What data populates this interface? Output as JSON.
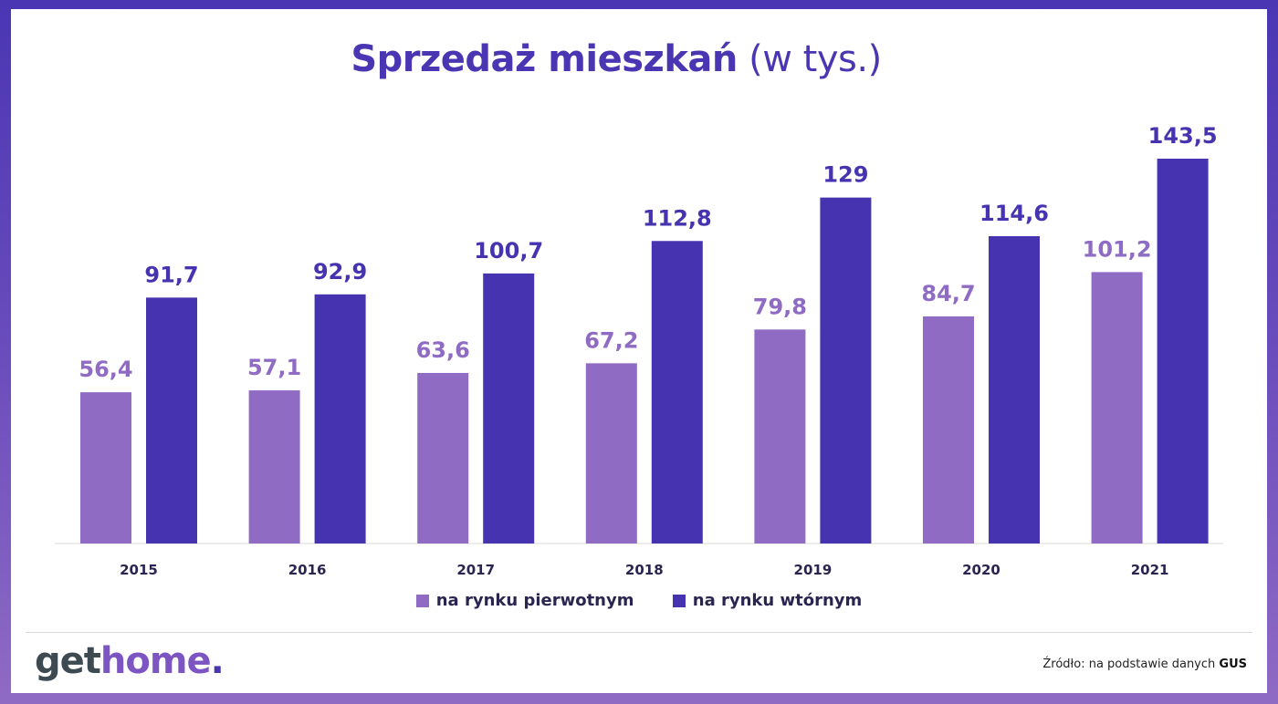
{
  "chart_data": {
    "type": "bar",
    "title": "Sprzedaż mieszkań",
    "title_suffix": "(w tys.)",
    "categories": [
      "2015",
      "2016",
      "2017",
      "2018",
      "2019",
      "2020",
      "2021"
    ],
    "series": [
      {
        "name": "na rynku pierwotnym",
        "color": "#8f6bc4",
        "values": [
          56.4,
          57.1,
          63.6,
          67.2,
          79.8,
          84.7,
          101.2
        ],
        "labels": [
          "56,4",
          "57,1",
          "63,6",
          "67,2",
          "79,8",
          "84,7",
          "101,2"
        ]
      },
      {
        "name": "na rynku wtórnym",
        "color": "#4633b0",
        "values": [
          91.7,
          92.9,
          100.7,
          112.8,
          129,
          114.6,
          143.5
        ],
        "labels": [
          "91,7",
          "92,9",
          "100,7",
          "112,8",
          "129",
          "114,6",
          "143,5"
        ]
      }
    ],
    "ylim": [
      0,
      143.5
    ],
    "grid": false,
    "legend": "bottom"
  },
  "footer": {
    "logo": {
      "get": "get",
      "home": "home",
      "dot": "."
    },
    "source_prefix": "Źródło: na podstawie danych",
    "source_bold": "GUS"
  }
}
